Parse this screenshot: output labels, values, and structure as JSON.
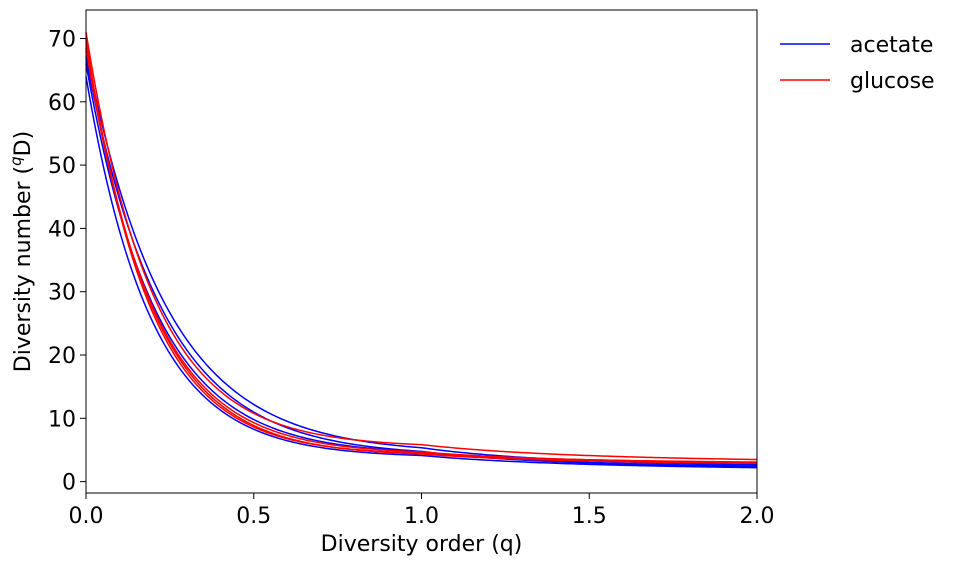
{
  "chart_data": {
    "type": "line",
    "xlabel": "Diversity order (q)",
    "ylabel_main": "Diversity number (",
    "ylabel_sup": "q",
    "ylabel_end": "D)",
    "xlim": [
      0,
      2.0
    ],
    "ylim": [
      -1.8,
      74.5
    ],
    "xticks": [
      0,
      0.5,
      1.0,
      1.5,
      2.0
    ],
    "xtick_labels": [
      "0.0",
      "0.5",
      "1.0",
      "1.5",
      "2.0"
    ],
    "yticks": [
      0,
      10,
      20,
      30,
      40,
      50,
      60,
      70
    ],
    "ytick_labels": [
      "0",
      "10",
      "20",
      "30",
      "40",
      "50",
      "60",
      "70"
    ],
    "grid": false,
    "legend_position": "outside-top-right",
    "legend": [
      {
        "name": "acetate",
        "color": "#0000ff"
      },
      {
        "name": "glucose",
        "color": "#ff0000"
      }
    ],
    "series": [
      {
        "group": "acetate",
        "color": "#0000ff",
        "D0": 64.0,
        "D1": 3.8,
        "D2": 1.8,
        "k": 5.2
      },
      {
        "group": "acetate",
        "color": "#0000ff",
        "D0": 66.0,
        "D1": 4.2,
        "D2": 2.0,
        "k": 4.8
      },
      {
        "group": "acetate",
        "color": "#0000ff",
        "D0": 67.0,
        "D1": 4.0,
        "D2": 1.9,
        "k": 4.4
      },
      {
        "group": "acetate",
        "color": "#0000ff",
        "D0": 68.0,
        "D1": 4.4,
        "D2": 2.2,
        "k": 4.2
      },
      {
        "group": "glucose",
        "color": "#ff0000",
        "D0": 71.0,
        "D1": 5.4,
        "D2": 3.0,
        "k": 5.0
      },
      {
        "group": "glucose",
        "color": "#ff0000",
        "D0": 70.0,
        "D1": 4.2,
        "D2": 2.8,
        "k": 5.4
      },
      {
        "group": "glucose",
        "color": "#ff0000",
        "D0": 69.5,
        "D1": 4.0,
        "D2": 2.6,
        "k": 5.2
      },
      {
        "group": "glucose",
        "color": "#ff0000",
        "D0": 68.5,
        "D1": 4.3,
        "D2": 2.7,
        "k": 5.1
      }
    ]
  }
}
